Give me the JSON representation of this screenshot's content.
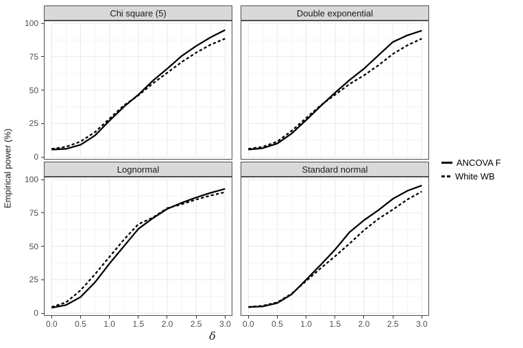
{
  "colors": {
    "line": "#000000",
    "strip_fill": "#D9D9D9",
    "strip_border": "#4D4D4D",
    "panel_border": "#4D4D4D",
    "grid_major": "#E7E7E7",
    "grid_minor": "#F3F3F3",
    "tick_mark": "#333333",
    "tick_label": "#4D4D4D",
    "axis_title": "#1A1A1A"
  },
  "chart_data": {
    "type": "line",
    "title": "",
    "xlabel": "δ",
    "ylabel": "Empirical power (%)",
    "xlim": [
      0,
      3
    ],
    "ylim": [
      0,
      100
    ],
    "grid": "major+minor",
    "x_ticks": [
      0,
      0.5,
      1,
      1.5,
      2,
      2.5,
      3
    ],
    "x_tick_labels": [
      "0.0",
      "0.5",
      "1.0",
      "1.5",
      "2.0",
      "2.5",
      "3.0"
    ],
    "y_ticks": [
      0,
      25,
      50,
      75,
      100
    ],
    "y_tick_labels": [
      "0",
      "25",
      "50",
      "75",
      "100"
    ],
    "legend": {
      "position": "right",
      "entries": [
        {
          "label": "ANCOVA F",
          "line_style": "solid"
        },
        {
          "label": "White WB",
          "line_style": "dashed"
        }
      ]
    },
    "x": [
      0,
      0.25,
      0.5,
      0.75,
      1,
      1.25,
      1.5,
      1.75,
      2,
      2.25,
      2.5,
      2.75,
      3
    ],
    "facets": [
      {
        "title": "Chi square (5)",
        "series": [
          {
            "name": "ANCOVA F",
            "line_style": "solid",
            "values": [
              5.5,
              6,
              9,
              16,
              27,
              37.5,
              46.5,
              57,
              66,
              75.5,
              83,
              89.5,
              95
            ]
          },
          {
            "name": "White WB",
            "line_style": "dashed",
            "values": [
              6,
              7.5,
              11.5,
              18.5,
              28.5,
              38.5,
              46,
              55,
              63,
              71,
              78,
              84,
              88.5
            ]
          }
        ]
      },
      {
        "title": "Double exponential",
        "series": [
          {
            "name": "ANCOVA F",
            "line_style": "solid",
            "values": [
              5.5,
              6.5,
              10,
              17.5,
              27.5,
              38,
              48,
              57.5,
              66,
              76,
              86,
              91,
              94.5
            ]
          },
          {
            "name": "White WB",
            "line_style": "dashed",
            "values": [
              6,
              7.5,
              11.5,
              19.5,
              29,
              38.5,
              46.5,
              54.5,
              61,
              68.5,
              77,
              83.5,
              88.5
            ]
          }
        ]
      },
      {
        "title": "Lognormal",
        "series": [
          {
            "name": "ANCOVA F",
            "line_style": "solid",
            "values": [
              4,
              6,
              12,
              23,
              37,
              50,
              63,
              71,
              78,
              82.5,
              86.5,
              90,
              93
            ]
          },
          {
            "name": "White WB",
            "line_style": "dashed",
            "values": [
              4.5,
              8,
              17,
              29,
              42,
              55,
              66.5,
              71.5,
              78.5,
              81.5,
              85,
              88,
              90.5
            ]
          }
        ]
      },
      {
        "title": "Standard normal",
        "series": [
          {
            "name": "ANCOVA F",
            "line_style": "solid",
            "values": [
              4.5,
              5,
              7.5,
              14,
              25,
              36,
              47.5,
              60.5,
              69.5,
              77,
              85.5,
              91.5,
              95.5
            ]
          },
          {
            "name": "White WB",
            "line_style": "dashed",
            "values": [
              4.5,
              5.5,
              8,
              14.5,
              24,
              33.5,
              42.5,
              52,
              62,
              70.5,
              77.5,
              85,
              91
            ]
          }
        ]
      }
    ]
  }
}
